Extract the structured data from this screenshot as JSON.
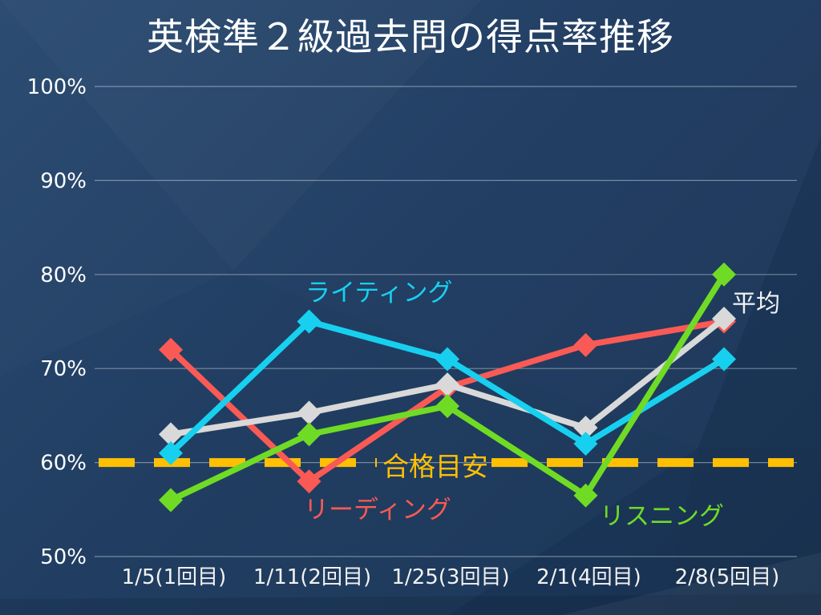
{
  "title": "英検準２級過去問の得点率推移",
  "chart_data": {
    "type": "line",
    "title": "英検準２級過去問の得点率推移",
    "categories": [
      "1/5(1回目)",
      "1/11(2回目)",
      "1/25(3回目)",
      "2/1(4回目)",
      "2/8(5回目)"
    ],
    "series": [
      {
        "name": "リーディング",
        "color": "#FA5A55",
        "marker": "diamond",
        "values": [
          72,
          58,
          68,
          72.5,
          75
        ]
      },
      {
        "name": "ライティング",
        "color": "#17D0EF",
        "marker": "diamond",
        "values": [
          61,
          75,
          71,
          62,
          71
        ]
      },
      {
        "name": "リスニング",
        "color": "#70DB25",
        "marker": "diamond",
        "values": [
          56,
          63,
          66,
          56.5,
          80
        ]
      },
      {
        "name": "平均",
        "color": "#D9D9D9",
        "marker": "diamond",
        "values": [
          63,
          65.3,
          68.3,
          63.7,
          75.3
        ]
      }
    ],
    "threshold": {
      "label": "合格目安",
      "value": 60,
      "color": "#FFC003",
      "style": "dashed"
    },
    "xlabel": "",
    "ylabel": "",
    "ylim": [
      50,
      100
    ],
    "y_ticks": [
      {
        "v": 100,
        "label": "100%"
      },
      {
        "v": 90,
        "label": "90%"
      },
      {
        "v": 80,
        "label": "80%"
      },
      {
        "v": 70,
        "label": "70%"
      },
      {
        "v": 60,
        "label": "60%"
      },
      {
        "v": 50,
        "label": "50%"
      }
    ],
    "grid": true,
    "legend": "inline-labels",
    "background": "#1F3C61",
    "text_color": "#FFFFFF"
  }
}
